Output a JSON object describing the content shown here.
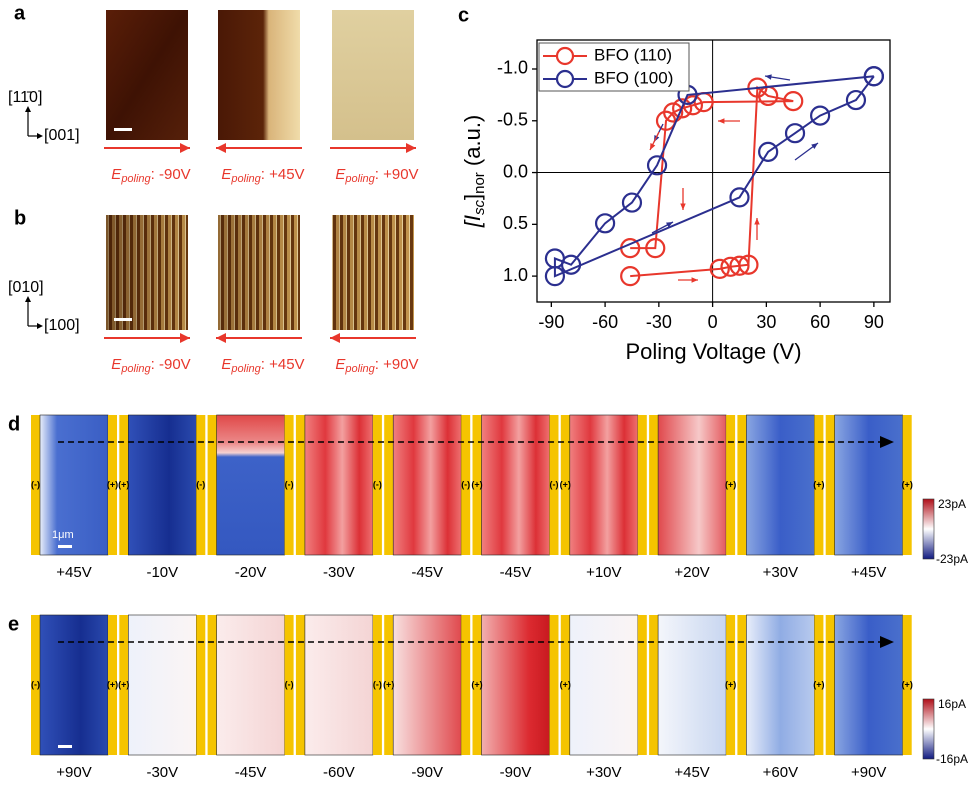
{
  "field_symbol": "E",
  "field_subscript": "poling",
  "panel_a": {
    "label": "a",
    "axis_labels": [
      "[11̄0]",
      "[001]"
    ],
    "captions": [
      ": -90V",
      ": +45V",
      ": +90V"
    ]
  },
  "panel_b": {
    "label": "b",
    "axis_labels": [
      "[010]",
      "[100]"
    ],
    "captions": [
      ": -90V",
      ": +45V",
      ": +90V"
    ]
  },
  "chart_data": {
    "type": "line",
    "panel_label": "c",
    "xlabel": "Poling Voltage (V)",
    "ylabel_parts": [
      "[I",
      "sc",
      "]",
      "nor",
      " (a.u.)"
    ],
    "xlim": [
      -98,
      99
    ],
    "ylim": [
      1.25,
      -1.28
    ],
    "xticks": [
      -90,
      -60,
      -30,
      0,
      30,
      60,
      90
    ],
    "yticks": [
      {
        "value": -1.0,
        "label": "-1.0"
      },
      {
        "value": -0.5,
        "label": "-0.5"
      },
      {
        "value": 0,
        "label": "0.0"
      },
      {
        "value": 0.5,
        "label": "0.5"
      },
      {
        "value": 1.0,
        "label": "1.0"
      }
    ],
    "legend": "upper left",
    "series": [
      {
        "name": "BFO (110)",
        "color": "#e8372c",
        "x": [
          -46,
          4,
          10,
          15,
          20,
          25,
          31,
          45,
          -5,
          -11,
          -17,
          -22,
          -26,
          -32,
          -46
        ],
        "values": [
          1.0,
          0.93,
          0.91,
          0.9,
          0.89,
          -0.82,
          -0.74,
          -0.69,
          -0.68,
          -0.65,
          -0.62,
          -0.58,
          -0.5,
          0.73,
          0.73
        ]
      },
      {
        "name": "BFO (100)",
        "color": "#2b2f8f",
        "x": [
          90,
          -14,
          -31,
          -45,
          -60,
          -79,
          -88,
          -88,
          15,
          31,
          46,
          60,
          80,
          90
        ],
        "values": [
          -0.93,
          -0.75,
          -0.07,
          0.29,
          0.49,
          0.89,
          0.83,
          1.0,
          0.24,
          -0.2,
          -0.38,
          -0.55,
          -0.7,
          -0.93
        ]
      }
    ]
  },
  "panel_d": {
    "label": "d",
    "scale_bar": "1μm",
    "colorbar": [
      "23pA",
      "-23pA"
    ],
    "voltages": [
      "+45V",
      "-10V",
      "-20V",
      "-30V",
      "-45V",
      "-45V",
      "+10V",
      "+20V",
      "+30V",
      "+45V"
    ],
    "electrodes": [
      {
        "left": "(-)",
        "right": "(+)"
      },
      {
        "left": "(+)",
        "right": "(-)"
      },
      {
        "right": "(-)"
      },
      {
        "right": "(-)"
      },
      {
        "right": "(-)"
      },
      {
        "left": "(+)",
        "right": "(-)"
      },
      {
        "left": "(+)"
      },
      {
        "right": "(+)"
      },
      {
        "right": "(+)"
      },
      {
        "right": "(+)"
      }
    ]
  },
  "panel_e": {
    "label": "e",
    "colorbar": [
      "16pA",
      "-16pA"
    ],
    "voltages": [
      "+90V",
      "-30V",
      "-45V",
      "-60V",
      "-90V",
      "-90V",
      "+30V",
      "+45V",
      "+60V",
      "+90V"
    ],
    "electrodes": [
      {
        "left": "(-)",
        "right": "(+)"
      },
      {
        "left": "(+)"
      },
      {
        "right": "(-)"
      },
      {
        "right": "(-)"
      },
      {
        "left": "(+)"
      },
      {
        "left": "(+)"
      },
      {
        "left": "(+)"
      },
      {
        "right": "(+)"
      },
      {
        "right": "(+)"
      },
      {
        "right": "(+)"
      }
    ]
  }
}
